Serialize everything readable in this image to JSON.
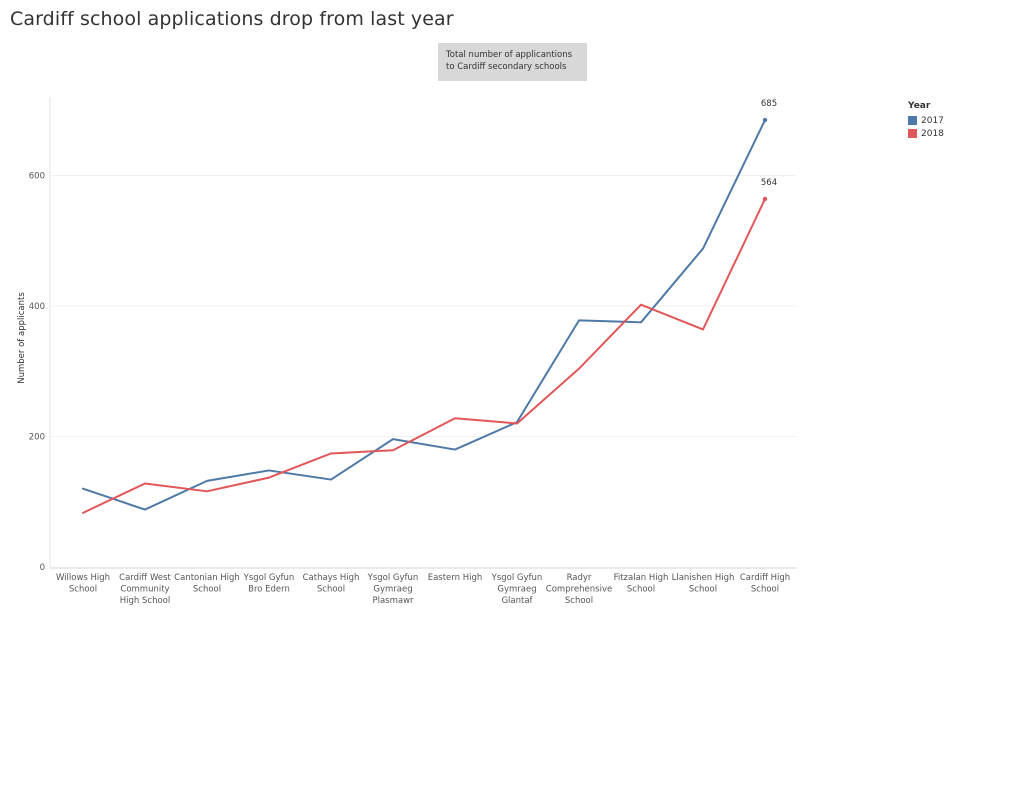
{
  "title": "Cardiff school applications drop from last year",
  "annotation": "Total number of applicantions to Cardiff secondary schools",
  "chart_data": {
    "type": "line",
    "ylabel": "Number of applicants",
    "xlabel": "",
    "ylim": [
      0,
      700
    ],
    "yticks": [
      0,
      200,
      400,
      600
    ],
    "grid": "horizontal",
    "legend_title": "Year",
    "legend_position": "top-right",
    "categories": [
      [
        "Willows High",
        "School"
      ],
      [
        "Cardiff West",
        "Community",
        "High School"
      ],
      [
        "Cantonian High",
        "School"
      ],
      [
        "Ysgol Gyfun",
        "Bro Edern"
      ],
      [
        "Cathays High",
        "School"
      ],
      [
        "Ysgol Gyfun",
        "Gymraeg",
        "Plasmawr"
      ],
      [
        "Eastern High"
      ],
      [
        "Ysgol Gyfun",
        "Gymraeg",
        "Glantaf"
      ],
      [
        "Radyr",
        "Comprehensive",
        "School"
      ],
      [
        "Fitzalan High",
        "School"
      ],
      [
        "Llanishen High",
        "School"
      ],
      [
        "Cardiff High",
        "School"
      ]
    ],
    "series": [
      {
        "name": "2017",
        "color": "#4e79a7",
        "values": [
          120,
          88,
          132,
          148,
          134,
          196,
          180,
          222,
          378,
          375,
          488,
          685
        ],
        "end_label": "685"
      },
      {
        "name": "2018",
        "color": "#e15759",
        "values": [
          83,
          128,
          116,
          137,
          174,
          179,
          228,
          220,
          304,
          402,
          364,
          564
        ],
        "end_label": "564"
      }
    ]
  }
}
